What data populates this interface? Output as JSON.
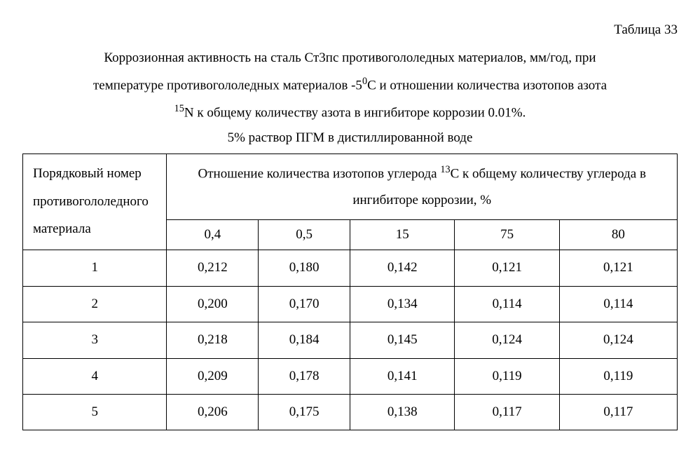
{
  "table_label": "Таблица 33",
  "caption_line1": "Коррозионная активность на сталь Ст3пс противогололедных материалов, мм/год, при",
  "caption_line2_a": "температуре противогололедных материалов -5",
  "caption_line2_sup": "0",
  "caption_line2_b": "С и отношении количества изотопов азота",
  "caption_line3_sup": "15",
  "caption_line3_a": "N  к общему количеству азота в ингибиторе коррозии 0.01%.",
  "caption_line4": "5% раствор ПГМ в дистиллированной воде",
  "row_header": "Порядковый номер противогололедного материала",
  "group_header_a": "Отношение количества изотопов углерода ",
  "group_header_sup": "13",
  "group_header_b": "С к общему количеству углерода в ингибиторе коррозии, %",
  "columns": [
    "0,4",
    "0,5",
    "15",
    "75",
    "80"
  ],
  "rows": [
    {
      "n": "1",
      "v": [
        "0,212",
        "0,180",
        "0,142",
        "0,121",
        "0,121"
      ]
    },
    {
      "n": "2",
      "v": [
        "0,200",
        "0,170",
        "0,134",
        "0,114",
        "0,114"
      ]
    },
    {
      "n": "3",
      "v": [
        "0,218",
        "0,184",
        "0,145",
        "0,124",
        "0,124"
      ]
    },
    {
      "n": "4",
      "v": [
        "0,209",
        "0,178",
        "0,141",
        "0,119",
        "0,119"
      ]
    },
    {
      "n": "5",
      "v": [
        "0,206",
        "0,175",
        "0,138",
        "0,117",
        "0,117"
      ]
    }
  ],
  "col_widths": [
    "22%",
    "14%",
    "14%",
    "16%",
    "16%",
    "18%"
  ]
}
